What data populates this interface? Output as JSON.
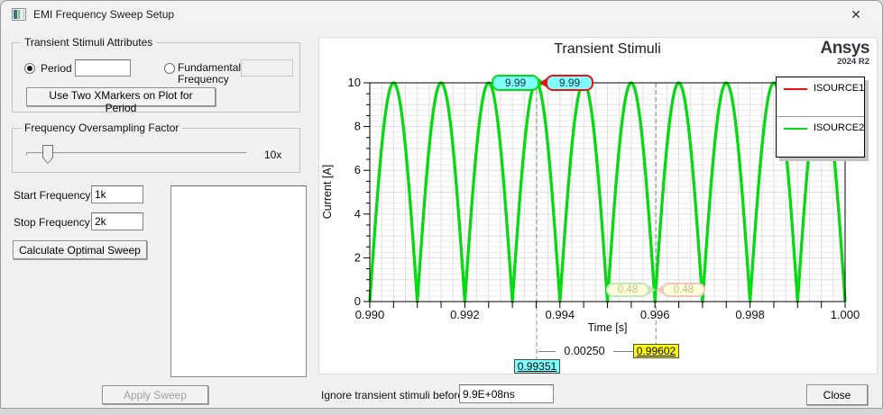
{
  "window": {
    "title": "EMI Frequency Sweep Setup",
    "close_glyph": "✕"
  },
  "left_panel": {
    "stimuli_group": {
      "title": "Transient Stimuli Attributes",
      "period": {
        "label": "Period",
        "value": "",
        "selected": true
      },
      "fundamental": {
        "label": "Fundamental Frequency",
        "value": "",
        "selected": false
      },
      "xmarkers_button": "Use Two XMarkers on Plot for Period"
    },
    "oversampling_group": {
      "title": "Frequency Oversampling Factor",
      "value_label": "10x"
    },
    "start_frequency": {
      "label": "Start Frequency:",
      "value": "1k"
    },
    "stop_frequency": {
      "label": "Stop Frequency:",
      "value": "2k"
    },
    "calculate_button": "Calculate Optimal Sweep",
    "apply_button": "Apply Sweep"
  },
  "bottom_bar": {
    "ignore_label": "Ignore transient stimuli before",
    "ignore_value": "9.9E+08ns",
    "close_button": "Close"
  },
  "plot": {
    "brand": {
      "name": "Ansys",
      "release": "2024 R2"
    }
  },
  "chart_data": {
    "type": "line",
    "title": "Transient Stimuli",
    "xlabel": "Time [s]",
    "ylabel": "Current [A]",
    "xlim": [
      0.99,
      1.0
    ],
    "ylim": [
      0,
      10
    ],
    "x_ticks": [
      "0.990",
      "0.992",
      "0.994",
      "0.996",
      "0.998",
      "1.000"
    ],
    "y_ticks": [
      0,
      2,
      4,
      6,
      8,
      10
    ],
    "grid": {
      "x_minor": 0.00025,
      "x_major": 0.001,
      "y_minor": 0.25,
      "y_major": 1,
      "x_tick_minor": 0.0005,
      "x_tick_major": 0.002,
      "y_tick_minor": 0.5,
      "y_tick_major": 2
    },
    "series": [
      {
        "name": "ISOURCE1",
        "color": "#ee1111",
        "waveform": {
          "kind": "abs_sine",
          "amplitude": 10,
          "hump_period": 0.001,
          "t0": 0.99
        }
      },
      {
        "name": "ISOURCE2",
        "color": "#00dd11",
        "waveform": {
          "kind": "abs_sine",
          "amplitude": 10,
          "hump_period": 0.001,
          "t0": 0.99
        }
      }
    ],
    "legend": {
      "position": "top-right",
      "entries": [
        {
          "label": "ISOURCE1",
          "color": "#ee1111"
        },
        {
          "label": "ISOURCE2",
          "color": "#00dd11"
        }
      ]
    },
    "annotations": {
      "y_markers": [
        {
          "text": "9.99",
          "x": 0.99351,
          "y": 9.99,
          "series": "ISOURCE2",
          "edge": "#00dd11",
          "fill": "#80ffff",
          "text_color": "#16303f"
        },
        {
          "text": "9.99",
          "x": 0.99351,
          "y": 9.99,
          "series": "ISOURCE1",
          "edge": "#ee1111",
          "fill": "#80ffff",
          "text_color": "#16303f"
        },
        {
          "text": "0.48",
          "x": 0.99602,
          "y": 0.48,
          "series": "ISOURCE2",
          "edge": "#bfe9b8",
          "fill": "#ffffd8",
          "text_color": "#bcbc92"
        },
        {
          "text": "0.48",
          "x": 0.99602,
          "y": 0.48,
          "series": "ISOURCE1",
          "edge": "#f6c3c3",
          "fill": "#ffffd8",
          "text_color": "#bcbc92"
        }
      ],
      "x_markers": [
        {
          "text": "0.99351",
          "x": 0.99351,
          "fill": "#80ffff"
        },
        {
          "text": "0.99602",
          "x": 0.99602,
          "fill": "#ffff00"
        }
      ],
      "delta": {
        "text": "0.00250"
      }
    }
  }
}
